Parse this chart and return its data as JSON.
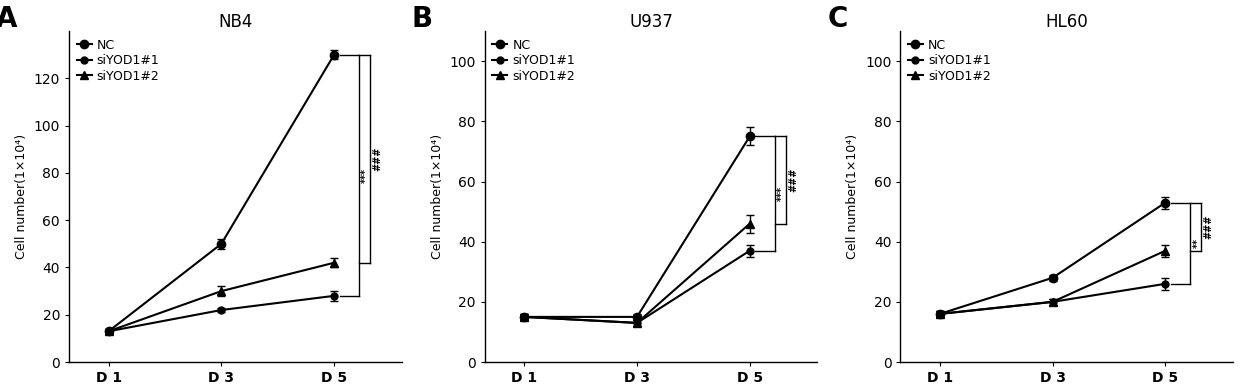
{
  "panels": [
    {
      "label": "A",
      "title": "NB4",
      "ylabel": "Cell number(1×10⁴)",
      "xlabel_ticks": [
        "D 1",
        "D 3",
        "D 5"
      ],
      "ylim": [
        0,
        140
      ],
      "yticks": [
        0,
        20,
        40,
        60,
        80,
        100,
        120
      ],
      "series": [
        {
          "name": "NC",
          "x": [
            0,
            1,
            2
          ],
          "y": [
            13,
            50,
            130
          ],
          "yerr": [
            1,
            2,
            2
          ],
          "marker": "o",
          "markersize": 6,
          "color": "#000000",
          "linewidth": 1.5
        },
        {
          "name": "siYOD1#1",
          "x": [
            0,
            1,
            2
          ],
          "y": [
            13,
            22,
            28
          ],
          "yerr": [
            1,
            1,
            2
          ],
          "marker": "o",
          "markersize": 5,
          "color": "#000000",
          "linewidth": 1.5
        },
        {
          "name": "siYOD1#2",
          "x": [
            0,
            1,
            2
          ],
          "y": [
            13,
            30,
            42
          ],
          "yerr": [
            1,
            2,
            2
          ],
          "marker": "^",
          "markersize": 6,
          "color": "#000000",
          "linewidth": 1.5
        }
      ],
      "sig1_text": "***",
      "sig2_text": "###"
    },
    {
      "label": "B",
      "title": "U937",
      "ylabel": "Cell number(1×10⁴)",
      "xlabel_ticks": [
        "D 1",
        "D 3",
        "D 5"
      ],
      "ylim": [
        0,
        110
      ],
      "yticks": [
        0,
        20,
        40,
        60,
        80,
        100
      ],
      "series": [
        {
          "name": "NC",
          "x": [
            0,
            1,
            2
          ],
          "y": [
            15,
            15,
            75
          ],
          "yerr": [
            1,
            1,
            3
          ],
          "marker": "o",
          "markersize": 6,
          "color": "#000000",
          "linewidth": 1.5
        },
        {
          "name": "siYOD1#1",
          "x": [
            0,
            1,
            2
          ],
          "y": [
            15,
            13,
            37
          ],
          "yerr": [
            1,
            1,
            2
          ],
          "marker": "o",
          "markersize": 5,
          "color": "#000000",
          "linewidth": 1.5
        },
        {
          "name": "siYOD1#2",
          "x": [
            0,
            1,
            2
          ],
          "y": [
            15,
            13,
            46
          ],
          "yerr": [
            1,
            1,
            3
          ],
          "marker": "^",
          "markersize": 6,
          "color": "#000000",
          "linewidth": 1.5
        }
      ],
      "sig1_text": "***",
      "sig2_text": "###"
    },
    {
      "label": "C",
      "title": "HL60",
      "ylabel": "Cell number(1×10⁴)",
      "xlabel_ticks": [
        "D 1",
        "D 3",
        "D 5"
      ],
      "ylim": [
        0,
        110
      ],
      "yticks": [
        0,
        20,
        40,
        60,
        80,
        100
      ],
      "series": [
        {
          "name": "NC",
          "x": [
            0,
            1,
            2
          ],
          "y": [
            16,
            28,
            53
          ],
          "yerr": [
            1,
            1,
            2
          ],
          "marker": "o",
          "markersize": 6,
          "color": "#000000",
          "linewidth": 1.5
        },
        {
          "name": "siYOD1#1",
          "x": [
            0,
            1,
            2
          ],
          "y": [
            16,
            20,
            26
          ],
          "yerr": [
            1,
            1,
            2
          ],
          "marker": "o",
          "markersize": 5,
          "color": "#000000",
          "linewidth": 1.5
        },
        {
          "name": "siYOD1#2",
          "x": [
            0,
            1,
            2
          ],
          "y": [
            16,
            20,
            37
          ],
          "yerr": [
            1,
            1,
            2
          ],
          "marker": "^",
          "markersize": 6,
          "color": "#000000",
          "linewidth": 1.5
        }
      ],
      "sig1_text": "**",
      "sig2_text": "###"
    }
  ],
  "bg_color": "#ffffff",
  "text_color": "#000000",
  "panel_label_fontsize": 20,
  "title_fontsize": 12,
  "tick_fontsize": 10,
  "ylabel_fontsize": 9,
  "legend_fontsize": 9
}
